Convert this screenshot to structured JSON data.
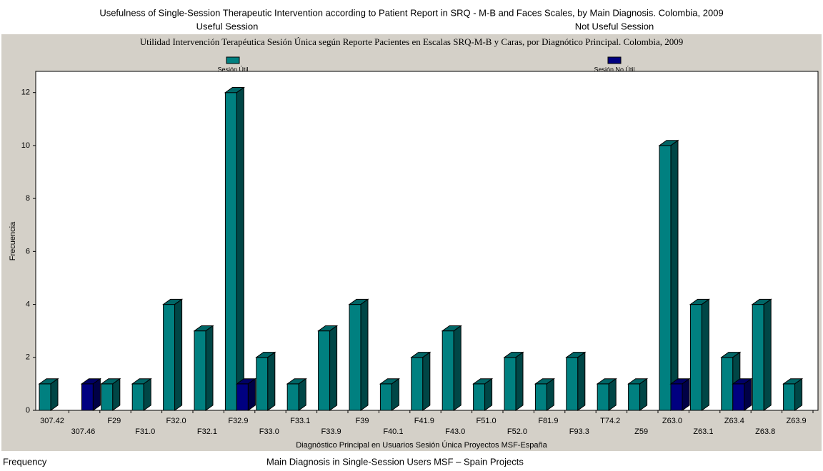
{
  "header": {
    "title": "Usefulness of Single-Session Therapeutic Intervention according to Patient Report in SRQ - M-B and Faces Scales, by Main Diagnosis.  Colombia, 2009",
    "useful": "Useful Session",
    "not_useful": "Not Useful Session"
  },
  "footer": {
    "y_label": "Frequency",
    "x_label": "Main Diagnosis in Single-Session Users MSF – Spain Projects"
  },
  "chart_data": {
    "type": "bar3d",
    "title": "Utilidad Intervención Terapéutica Sesión Única según  Reporte Pacientes en Escalas SRQ-M-B y Caras, por Diagnótico Principal. Colombia, 2009",
    "x_label": "Diagnóstico Principal en Usuarios Sesión Única Proyectos MSF-España",
    "y_label": "Frecuencia",
    "categories": [
      "307.42",
      "307.46",
      "F29",
      "F31.0",
      "F32.0",
      "F32.1",
      "F32.9",
      "F33.0",
      "F33.1",
      "F33.9",
      "F39",
      "F40.1",
      "F41.9",
      "F43.0",
      "F51.0",
      "F52.0",
      "F81.9",
      "F93.3",
      "T74.2",
      "Z59",
      "Z63.0",
      "Z63.1",
      "Z63.4",
      "Z63.8",
      "Z63.9"
    ],
    "series": [
      {
        "name": "Sesión Útil",
        "color": "#008080",
        "values": [
          1,
          0,
          1,
          1,
          4,
          3,
          12,
          2,
          1,
          3,
          4,
          1,
          2,
          3,
          1,
          2,
          1,
          2,
          1,
          1,
          10,
          4,
          2,
          4,
          1
        ]
      },
      {
        "name": "Sesión No Útil",
        "color": "#000080",
        "values": [
          0,
          1,
          0,
          0,
          0,
          0,
          1,
          0,
          0,
          0,
          0,
          0,
          0,
          0,
          0,
          0,
          0,
          0,
          0,
          0,
          1,
          0,
          1,
          0,
          0
        ]
      }
    ],
    "ylim": [
      0,
      12.8
    ],
    "yticks": [
      0,
      2,
      4,
      6,
      8,
      10,
      12
    ]
  }
}
